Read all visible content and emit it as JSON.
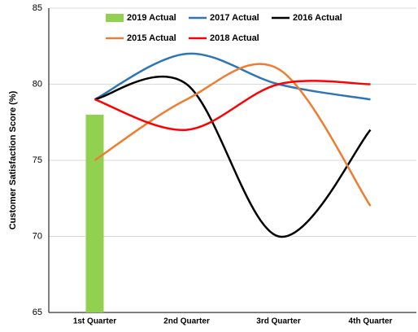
{
  "chart_data": {
    "type": "combo",
    "y_label": "Customer Satisfaction Score (%)",
    "categories": [
      "1st Quarter",
      "2nd Quarter",
      "3rd Quarter",
      "4th Quarter"
    ],
    "ylim": [
      65,
      85
    ],
    "yticks": [
      65,
      70,
      75,
      80,
      85
    ],
    "grid": true,
    "series": [
      {
        "name": "2019 Actual",
        "type": "bar",
        "color": "#92d050",
        "values": [
          78,
          null,
          null,
          null
        ]
      },
      {
        "name": "2017 Actual",
        "type": "line",
        "color": "#2e75b6",
        "values": [
          79,
          82,
          80,
          79
        ]
      },
      {
        "name": "2016 Actual",
        "type": "line",
        "color": "#000000",
        "values": [
          79,
          80,
          70,
          77
        ]
      },
      {
        "name": "2015 Actual",
        "type": "line",
        "color": "#ed7d31",
        "values": [
          75,
          79,
          81,
          72
        ]
      },
      {
        "name": "2018 Actual",
        "type": "line",
        "color": "#ff0000",
        "values": [
          79,
          77,
          80,
          80
        ]
      }
    ]
  }
}
